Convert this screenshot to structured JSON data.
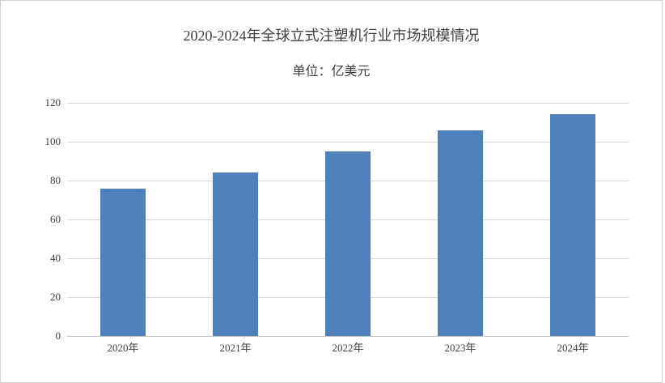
{
  "chart_data": {
    "type": "bar",
    "title": "2020-2024年全球立式注塑机行业市场规模情况",
    "subtitle": "单位：亿美元",
    "unit": "亿美元",
    "categories": [
      "2020年",
      "2021年",
      "2022年",
      "2023年",
      "2024年"
    ],
    "values": [
      76,
      84,
      95,
      106,
      114
    ],
    "xlabel": "",
    "ylabel": "",
    "ylim": [
      0,
      120
    ],
    "yticks": [
      0,
      20,
      40,
      60,
      80,
      100,
      120
    ],
    "grid": true,
    "legend_position": "none",
    "colors": {
      "bar": "#4e80bc",
      "gridline": "#d9d9d9",
      "axis_line": "#c7c7c7",
      "title_text": "#3f3f3f",
      "tick_text": "#404040",
      "frame_border": "#d2d2d2"
    }
  }
}
